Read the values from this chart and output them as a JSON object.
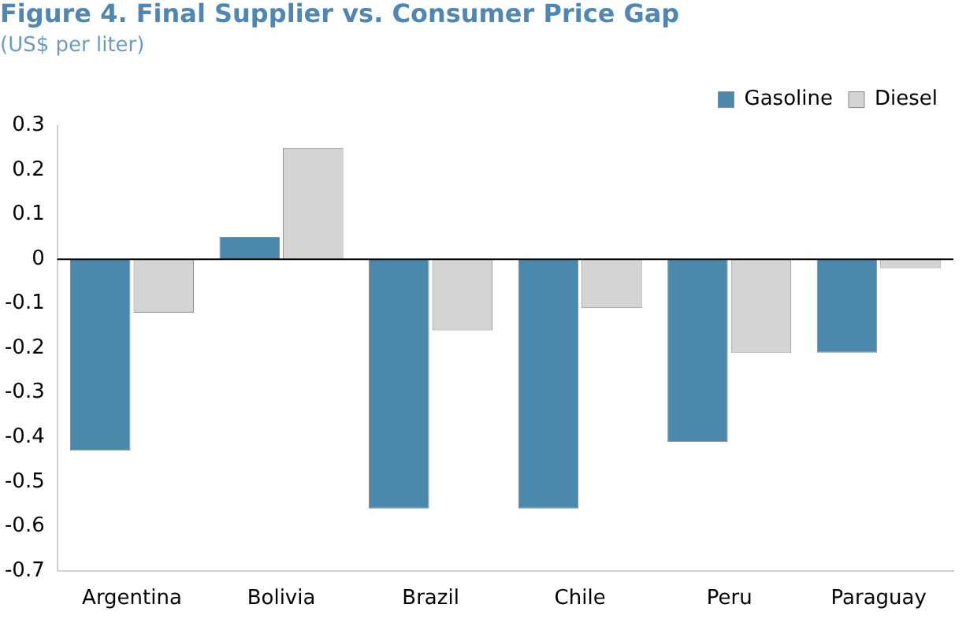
{
  "chart_data": {
    "type": "bar",
    "title": "Figure 4. Final Supplier vs. Consumer Price Gap",
    "subtitle": "(US$ per liter)",
    "categories": [
      "Argentina",
      "Bolivia",
      "Brazil",
      "Chile",
      "Peru",
      "Paraguay"
    ],
    "series": [
      {
        "name": "Gasoline",
        "color": "#4a89ab",
        "values": [
          -0.43,
          0.05,
          -0.56,
          -0.56,
          -0.41,
          -0.21
        ]
      },
      {
        "name": "Diesel",
        "color": "#d4d4d4",
        "values": [
          -0.12,
          0.25,
          -0.16,
          -0.11,
          -0.21,
          -0.02
        ]
      }
    ],
    "ylim": [
      -0.7,
      0.3
    ],
    "yticks": [
      -0.7,
      -0.6,
      -0.5,
      -0.4,
      -0.3,
      -0.2,
      -0.1,
      0,
      0.1,
      0.2,
      0.3
    ],
    "grid": false,
    "ref_lines": [
      {
        "axis": "y",
        "value": 0,
        "color": "#000000"
      }
    ],
    "legend": "top right"
  }
}
